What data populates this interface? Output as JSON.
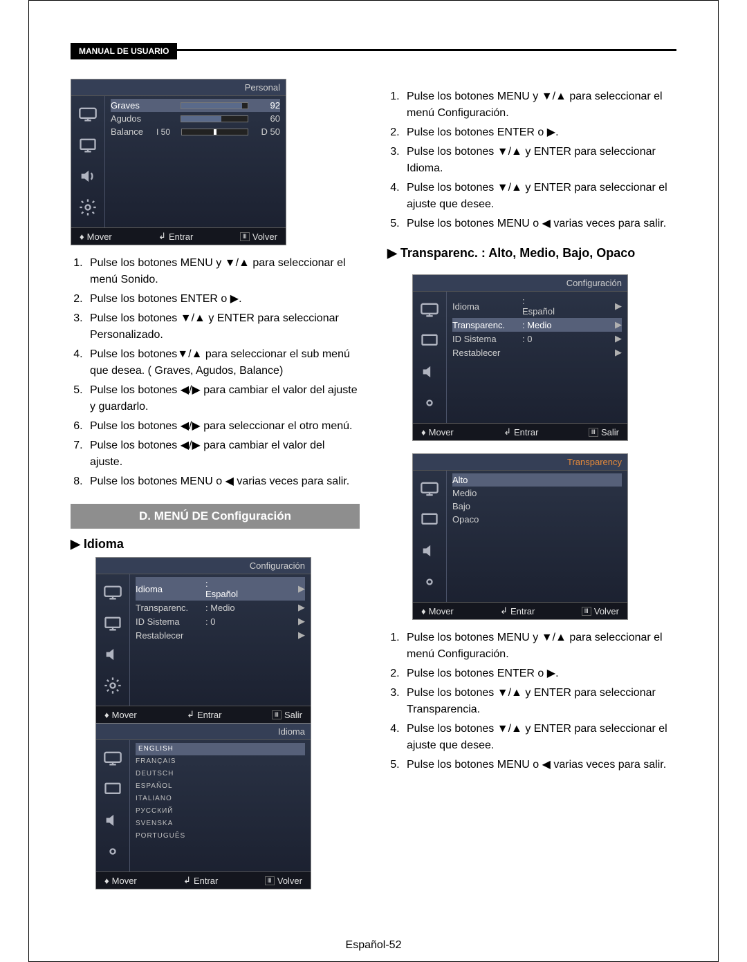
{
  "header": {
    "badge": "MANUAL DE USUARIO"
  },
  "osd_personal": {
    "title": "Personal",
    "rows": [
      {
        "label": "Graves",
        "val": 92,
        "pct": 92
      },
      {
        "label": "Agudos",
        "val": 60,
        "pct": 60
      },
      {
        "label": "Balance",
        "left": "I 50",
        "right": "D 50",
        "pct": 50
      }
    ],
    "foot_move": "Mover",
    "foot_enter": "Entrar",
    "foot_back": "Volver",
    "colors": {
      "bg_top": "#2c3548",
      "bg_bot": "#1a1f2e",
      "sel": "#566079",
      "bar": "#5a6a8a",
      "text": "#d0d0d0"
    }
  },
  "steps_sonido": [
    "Pulse los botones MENU y ▼/▲ para seleccionar el menú Sonido.",
    "Pulse los botones ENTER o ▶.",
    "Pulse los botones ▼/▲ y ENTER para seleccionar Personalizado.",
    "Pulse los botones▼/▲ para seleccionar el sub menú que desea.  ( Graves, Agudos, Balance)",
    "Pulse los botones ◀/▶ para cambiar el valor del ajuste y guardarlo.",
    "Pulse los botones ◀/▶ para seleccionar el otro menú.",
    "Pulse los botones ◀/▶ para cambiar el valor del ajuste.",
    "Pulse los botones MENU o ◀ varias veces para salir."
  ],
  "section_d": "D. MENÚ DE Configuración",
  "sub_idioma": "▶  Idioma",
  "osd_config": {
    "title": "Configuración",
    "rows": [
      {
        "label": "Idioma",
        "val": ": Español",
        "arrow": true,
        "sel": true
      },
      {
        "label": "Transparenc.",
        "val": ": Medio",
        "arrow": true
      },
      {
        "label": "ID Sistema",
        "val": ": 0",
        "arrow": true
      },
      {
        "label": "Restablecer",
        "val": "",
        "arrow": true
      }
    ],
    "foot_move": "Mover",
    "foot_enter": "Entrar",
    "foot_back": "Salir"
  },
  "osd_idioma": {
    "title": "Idioma",
    "langs": [
      "ENGLISH",
      "FRANÇAIS",
      "DEUTSCH",
      "ESPAÑOL",
      "ITALIANO",
      "РУССКИЙ",
      "SVENSKA",
      "PORTUGUÊS"
    ],
    "sel": "ENGLISH",
    "foot_move": "Mover",
    "foot_enter": "Entrar",
    "foot_back": "Volver"
  },
  "steps_config": [
    "Pulse los botones MENU y ▼/▲ para seleccionar el menú Configuración.",
    "Pulse los botones ENTER o ▶.",
    "Pulse los botones ▼/▲ y ENTER para seleccionar Idioma.",
    "Pulse los botones ▼/▲ y ENTER para seleccionar el ajuste que desee.",
    "Pulse los botones MENU o ◀ varias veces para salir."
  ],
  "sub_transp": "▶  Transparenc. : Alto, Medio, Bajo, Opaco",
  "osd_config2": {
    "title": "Configuración",
    "rows": [
      {
        "label": "Idioma",
        "val": ": Español",
        "arrow": true
      },
      {
        "label": "Transparenc.",
        "val": ": Medio",
        "arrow": true,
        "sel": true
      },
      {
        "label": "ID Sistema",
        "val": ": 0",
        "arrow": true
      },
      {
        "label": "Restablecer",
        "val": "",
        "arrow": true
      }
    ],
    "foot_move": "Mover",
    "foot_enter": "Entrar",
    "foot_back": "Salir"
  },
  "osd_transp": {
    "title": "Transparency",
    "opts": [
      "Alto",
      "Medio",
      "Bajo",
      "Opaco"
    ],
    "sel": "Alto",
    "foot_move": "Mover",
    "foot_enter": "Entrar",
    "foot_back": "Volver"
  },
  "steps_transp": [
    "Pulse los botones MENU y ▼/▲ para seleccionar el menú Configuración.",
    "Pulse los botones ENTER o ▶.",
    "Pulse los botones ▼/▲ y ENTER para seleccionar Transparencia.",
    "Pulse los botones ▼/▲ y ENTER para seleccionar el ajuste que desee.",
    "Pulse los botones MENU o ◀ varias veces para salir."
  ],
  "page_num": "Español-52",
  "icons": {
    "tv": "tv-icon",
    "screen": "screen-icon",
    "speaker": "speaker-icon",
    "gear": "gear-icon"
  },
  "icon_color": "#b0b4c0"
}
